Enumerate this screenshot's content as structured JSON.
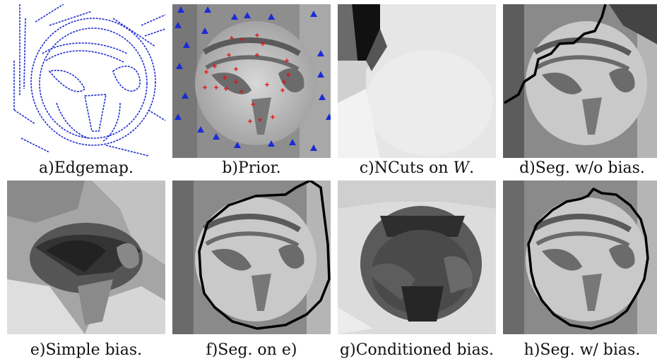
{
  "figure": {
    "panels": [
      {
        "id": "a",
        "caption": "a)Edgemap.",
        "kind": "edgemap"
      },
      {
        "id": "b",
        "caption": "b)Prior.",
        "kind": "prior"
      },
      {
        "id": "c",
        "caption": "c)NCuts on ",
        "caption_math": "W",
        "caption_tail": ".",
        "kind": "ncuts"
      },
      {
        "id": "d",
        "caption": "d)Seg.  w/o bias.",
        "kind": "seg-wo-bias"
      },
      {
        "id": "e",
        "caption": "e)Simple bias.",
        "kind": "simple-bias"
      },
      {
        "id": "f",
        "caption": "f)Seg.  on e)",
        "kind": "seg-on-e"
      },
      {
        "id": "g",
        "caption": "g)Conditioned bias.",
        "kind": "conditioned-bias"
      },
      {
        "id": "h",
        "caption": "h)Seg.  w/ bias.",
        "kind": "seg-w-bias"
      }
    ],
    "colors": {
      "edge": "#1f2fd0",
      "background_marker": "#1a2bd6",
      "foreground_marker": "#e01010",
      "contour": "#000000"
    }
  }
}
